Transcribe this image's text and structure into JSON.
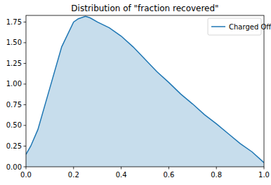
{
  "chart_data": {
    "type": "area",
    "title": "Distribution of \"fraction recovered\"",
    "x": [
      0,
      0.02,
      0.05,
      0.1,
      0.15,
      0.2,
      0.22,
      0.25,
      0.27,
      0.3,
      0.35,
      0.4,
      0.45,
      0.5,
      0.55,
      0.6,
      0.65,
      0.7,
      0.75,
      0.8,
      0.85,
      0.9,
      0.95,
      1.0
    ],
    "series": [
      {
        "name": "Charged Off",
        "color": "#1f77b4",
        "values": [
          0.15,
          0.25,
          0.45,
          0.95,
          1.45,
          1.75,
          1.79,
          1.82,
          1.8,
          1.75,
          1.68,
          1.58,
          1.45,
          1.3,
          1.15,
          1.02,
          0.88,
          0.76,
          0.63,
          0.52,
          0.4,
          0.28,
          0.18,
          0.05
        ]
      }
    ],
    "xlim": [
      0,
      1
    ],
    "ylim": [
      0,
      1.83
    ],
    "xticks": [
      {
        "value": 0,
        "label": "0.0"
      },
      {
        "value": 0.2,
        "label": "0.2"
      },
      {
        "value": 0.4,
        "label": "0.4"
      },
      {
        "value": 0.6,
        "label": "0.6"
      },
      {
        "value": 0.8,
        "label": "0.8"
      },
      {
        "value": 1.0,
        "label": "1.0"
      }
    ],
    "yticks": [
      {
        "value": 0,
        "label": "0.00"
      },
      {
        "value": 0.25,
        "label": "0.25"
      },
      {
        "value": 0.5,
        "label": "0.50"
      },
      {
        "value": 0.75,
        "label": "0.75"
      },
      {
        "value": 1.0,
        "label": "1.00"
      },
      {
        "value": 1.25,
        "label": "1.25"
      },
      {
        "value": 1.5,
        "label": "1.50"
      },
      {
        "value": 1.75,
        "label": "1.75"
      }
    ],
    "legend": "upper right",
    "grid": false
  }
}
